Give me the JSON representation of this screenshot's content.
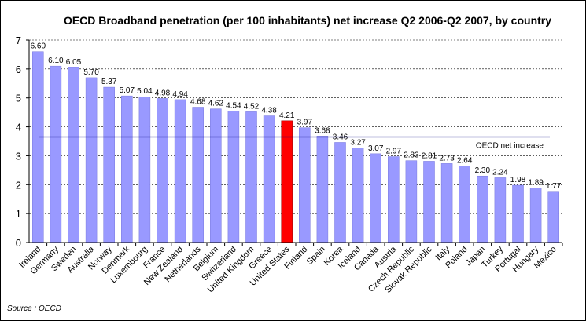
{
  "chart_data": {
    "type": "bar",
    "title": "OECD Broadband penetration (per 100 inhabitants) net increase Q2 2006-Q2 2007, by country",
    "categories": [
      "Ireland",
      "Germany",
      "Sweden",
      "Australia",
      "Norway",
      "Denmark",
      "Luxembourg",
      "France",
      "New Zealand",
      "Netherlands",
      "Belgium",
      "Switzerland",
      "United Kingdom",
      "Greece",
      "United States",
      "Finland",
      "Spain",
      "Korea",
      "Iceland",
      "Canada",
      "Austria",
      "Czech Republic",
      "Slovak Republic",
      "Italy",
      "Poland",
      "Japan",
      "Turkey",
      "Portugal",
      "Hungary",
      "Mexico"
    ],
    "values": [
      6.6,
      6.1,
      6.05,
      5.7,
      5.37,
      5.07,
      5.04,
      4.98,
      4.94,
      4.68,
      4.62,
      4.54,
      4.52,
      4.38,
      4.21,
      3.97,
      3.68,
      3.46,
      3.27,
      3.07,
      2.97,
      2.83,
      2.81,
      2.73,
      2.64,
      2.3,
      2.24,
      1.98,
      1.89,
      1.77
    ],
    "value_labels": [
      "6.60",
      "6.10",
      "6.05",
      "5.70",
      "5.37",
      "5.07",
      "5.04",
      "4.98",
      "4.94",
      "4.68",
      "4.62",
      "4.54",
      "4.52",
      "4.38",
      "4.21",
      "3.97",
      "3.68",
      "3.46",
      "3.27",
      "3.07",
      "2.97",
      "2.83",
      "2.81",
      "2.73",
      "2.64",
      "2.30",
      "2.24",
      "1.98",
      "1.89",
      "1.77"
    ],
    "highlight_category": "United States",
    "ylim": [
      0,
      7
    ],
    "yticks": [
      "0",
      "1",
      "2",
      "3",
      "4",
      "5",
      "6",
      "7"
    ],
    "grid": "horizontal dashed",
    "colors": {
      "bar": "#9999ff",
      "highlight": "#ff0000",
      "reference_line": "#000080"
    },
    "reference_line": {
      "label": "OECD net increase",
      "value": 3.65
    },
    "source": "Source : OECD"
  }
}
